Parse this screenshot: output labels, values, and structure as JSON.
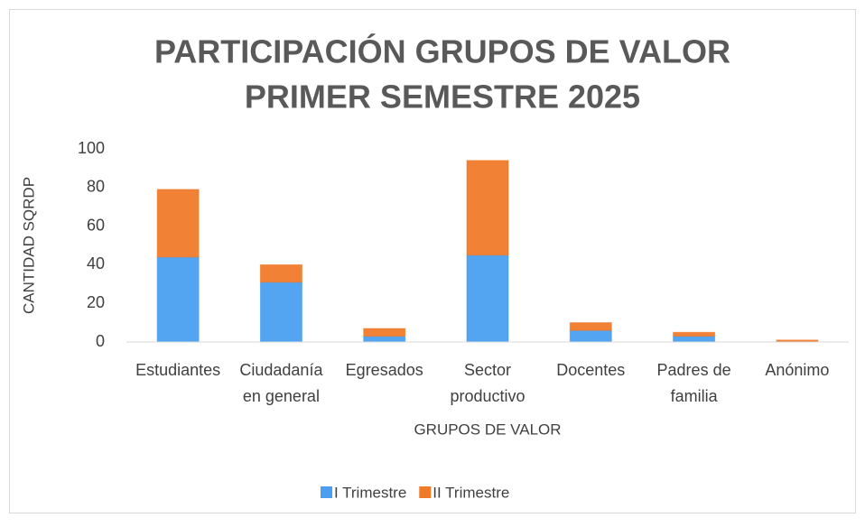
{
  "chart_data": {
    "type": "stacked_bar",
    "title": [
      "PARTICIPACIÓN GRUPOS DE VALOR",
      "PRIMER SEMESTRE 2025"
    ],
    "y_label": "CANTIDAD SQRDP",
    "x_label": "GRUPOS DE VALOR",
    "categories": [
      "Estudiantes",
      "Ciudadanía\nen general",
      "Egresados",
      "Sector\nproductivo",
      "Docentes",
      "Padres de\nfamilia",
      "Anónimo"
    ],
    "series": [
      {
        "name": "I Trimestre",
        "color": "#4a9ff0",
        "values": [
          44,
          31,
          3,
          45,
          6,
          3,
          0
        ]
      },
      {
        "name": "II Trimestre",
        "color": "#f07a2a",
        "values": [
          35,
          9,
          4,
          49,
          4,
          2,
          1
        ]
      }
    ],
    "ylim": [
      0,
      100
    ],
    "yticks": [
      0,
      20,
      40,
      60,
      80,
      100
    ],
    "grid": false,
    "legend": "bottom"
  }
}
